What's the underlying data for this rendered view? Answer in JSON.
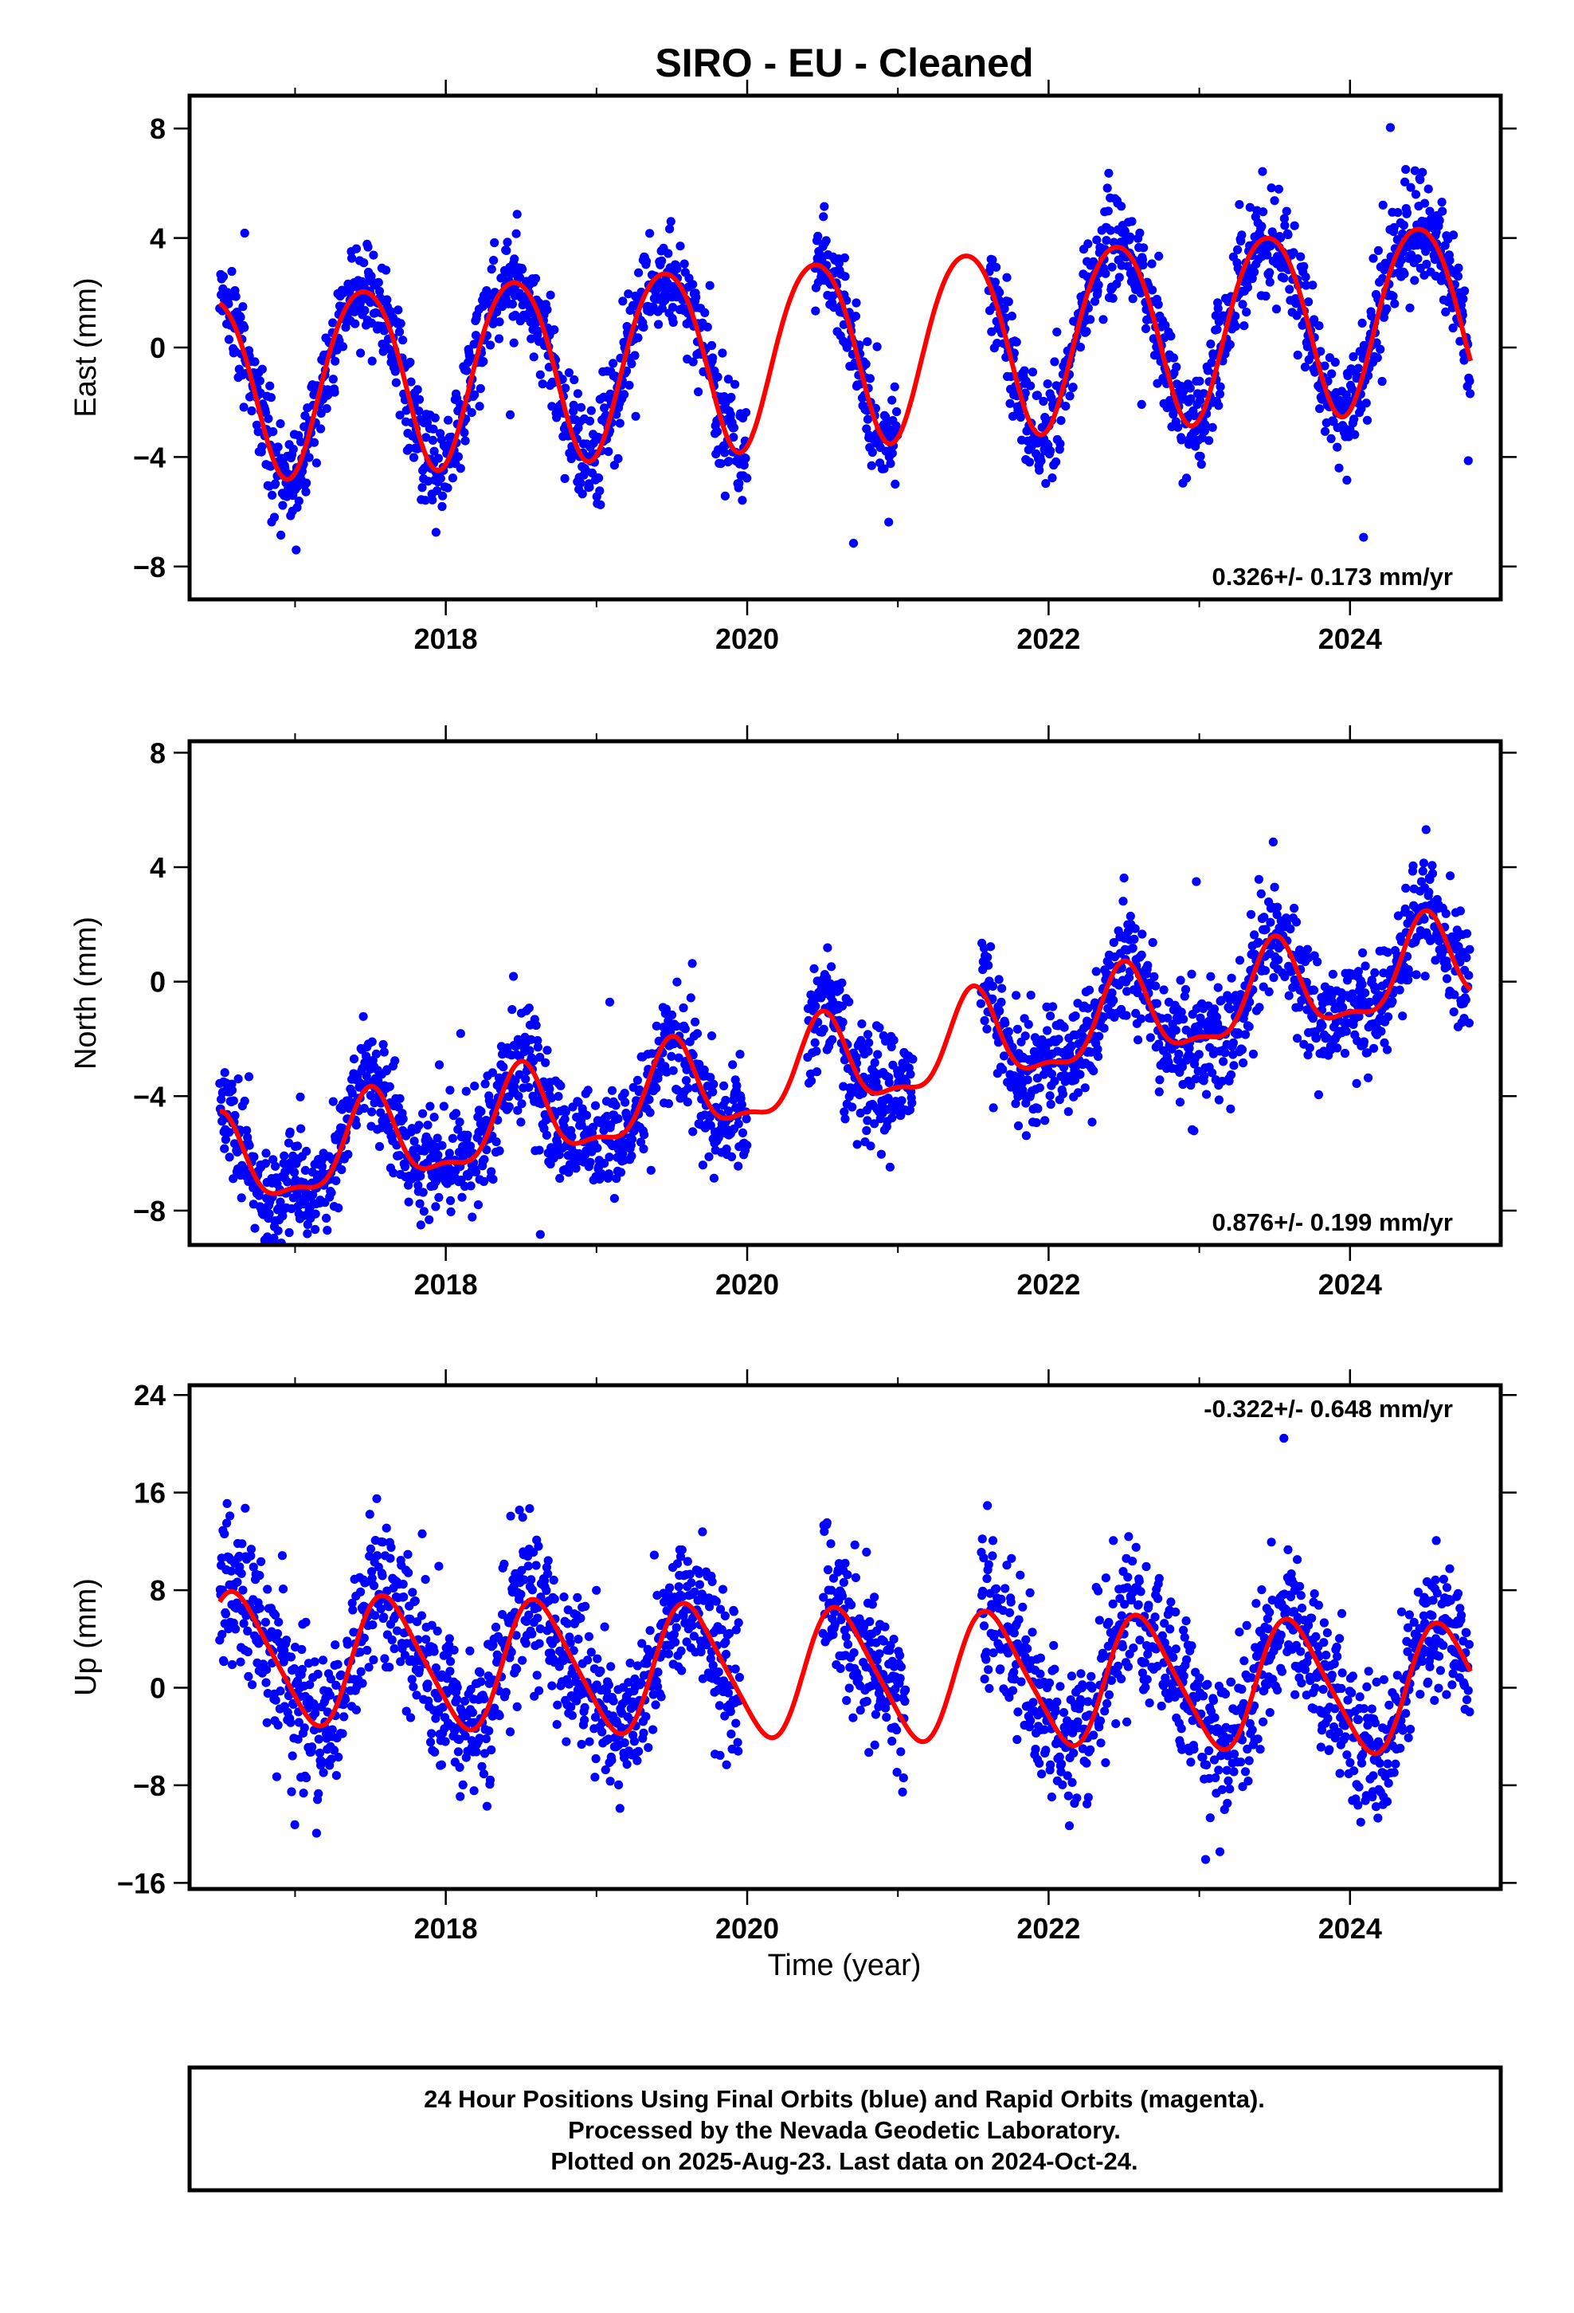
{
  "title": "SIRO  - EU - Cleaned",
  "x_axis_label": "Time (year)",
  "footer": {
    "line1": "24 Hour Positions Using Final Orbits (blue) and Rapid Orbits (magenta).",
    "line2": "Processed by the Nevada Geodetic Laboratory.",
    "line3": "Plotted on 2025-Aug-23. Last data on 2024-Oct-24."
  },
  "colors": {
    "points": "#0000ff",
    "model": "#ff0000",
    "frame": "#000000"
  },
  "chart_data": [
    {
      "type": "scatter",
      "ylabel": "East (mm)",
      "xlim": [
        2016.3,
        2025.0
      ],
      "ylim": [
        -9.2,
        9.2
      ],
      "xticks": [
        2018,
        2020,
        2022,
        2024
      ],
      "yticks": [
        -8,
        -4,
        0,
        4,
        8
      ],
      "yticklabels": [
        "−8",
        "−4",
        "0",
        "4",
        "8"
      ],
      "rate_label": "0.326+/- 0.173 mm/yr",
      "rate_label_position": "bottom-right",
      "data_start": 2016.5,
      "data_end": 2024.8,
      "gaps": [
        [
          2020.0,
          2020.4
        ],
        [
          2020.4,
          2020.45
        ],
        [
          2021.0,
          2021.6
        ]
      ],
      "model": {
        "offset": 0.05,
        "trend": 0.326,
        "annual_amp": 3.35,
        "annual_peak": 2017.45,
        "semiannual_amp": 0.3,
        "semiannual_peak": 2017.2
      },
      "noise_sd": 0.9,
      "series": [
        {
          "name": "Final Orbits (blue)",
          "kind": "points"
        },
        {
          "name": "model",
          "kind": "line"
        }
      ]
    },
    {
      "type": "scatter",
      "ylabel": "North (mm)",
      "xlim": [
        2016.3,
        2025.0
      ],
      "ylim": [
        -9.2,
        8.4
      ],
      "xticks": [
        2018,
        2020,
        2022,
        2024
      ],
      "yticks": [
        -8,
        -4,
        0,
        4,
        8
      ],
      "yticklabels": [
        "−8",
        "−4",
        "0",
        "4",
        "8"
      ],
      "rate_label": "0.876+/- 0.199 mm/yr",
      "rate_label_position": "bottom-right",
      "data_start": 2016.5,
      "data_end": 2024.8,
      "gaps": [
        [
          2020.0,
          2020.4
        ],
        [
          2021.1,
          2021.55
        ]
      ],
      "model": {
        "offset": -2.95,
        "trend": 0.876,
        "annual_amp": 1.55,
        "annual_peak": 2017.5,
        "semiannual_amp": 0.55,
        "semiannual_peak": 2017.0
      },
      "noise_sd": 0.95,
      "series": [
        {
          "name": "Final Orbits (blue)",
          "kind": "points"
        },
        {
          "name": "model",
          "kind": "line"
        }
      ]
    },
    {
      "type": "scatter",
      "ylabel": "Up (mm)",
      "xlim": [
        2016.3,
        2025.0
      ],
      "ylim": [
        -16.5,
        24.8
      ],
      "xticks": [
        2018,
        2020,
        2022,
        2024
      ],
      "yticks": [
        -16,
        -8,
        0,
        8,
        16,
        24
      ],
      "yticklabels": [
        "−16",
        "−8",
        "0",
        "8",
        "16",
        "24"
      ],
      "rate_label": "-0.322+/- 0.648 mm/yr",
      "rate_label_position": "top-right",
      "data_start": 2016.5,
      "data_end": 2024.8,
      "gaps": [
        [
          2019.95,
          2020.5
        ],
        [
          2021.05,
          2021.55
        ]
      ],
      "model": {
        "offset": 1.1,
        "trend": -0.322,
        "annual_amp": 5.2,
        "annual_peak": 2017.62,
        "semiannual_amp": 0.8,
        "semiannual_peak": 2017.5
      },
      "noise_sd": 3.0,
      "series": [
        {
          "name": "Final Orbits (blue)",
          "kind": "points"
        },
        {
          "name": "model",
          "kind": "line"
        }
      ]
    }
  ]
}
